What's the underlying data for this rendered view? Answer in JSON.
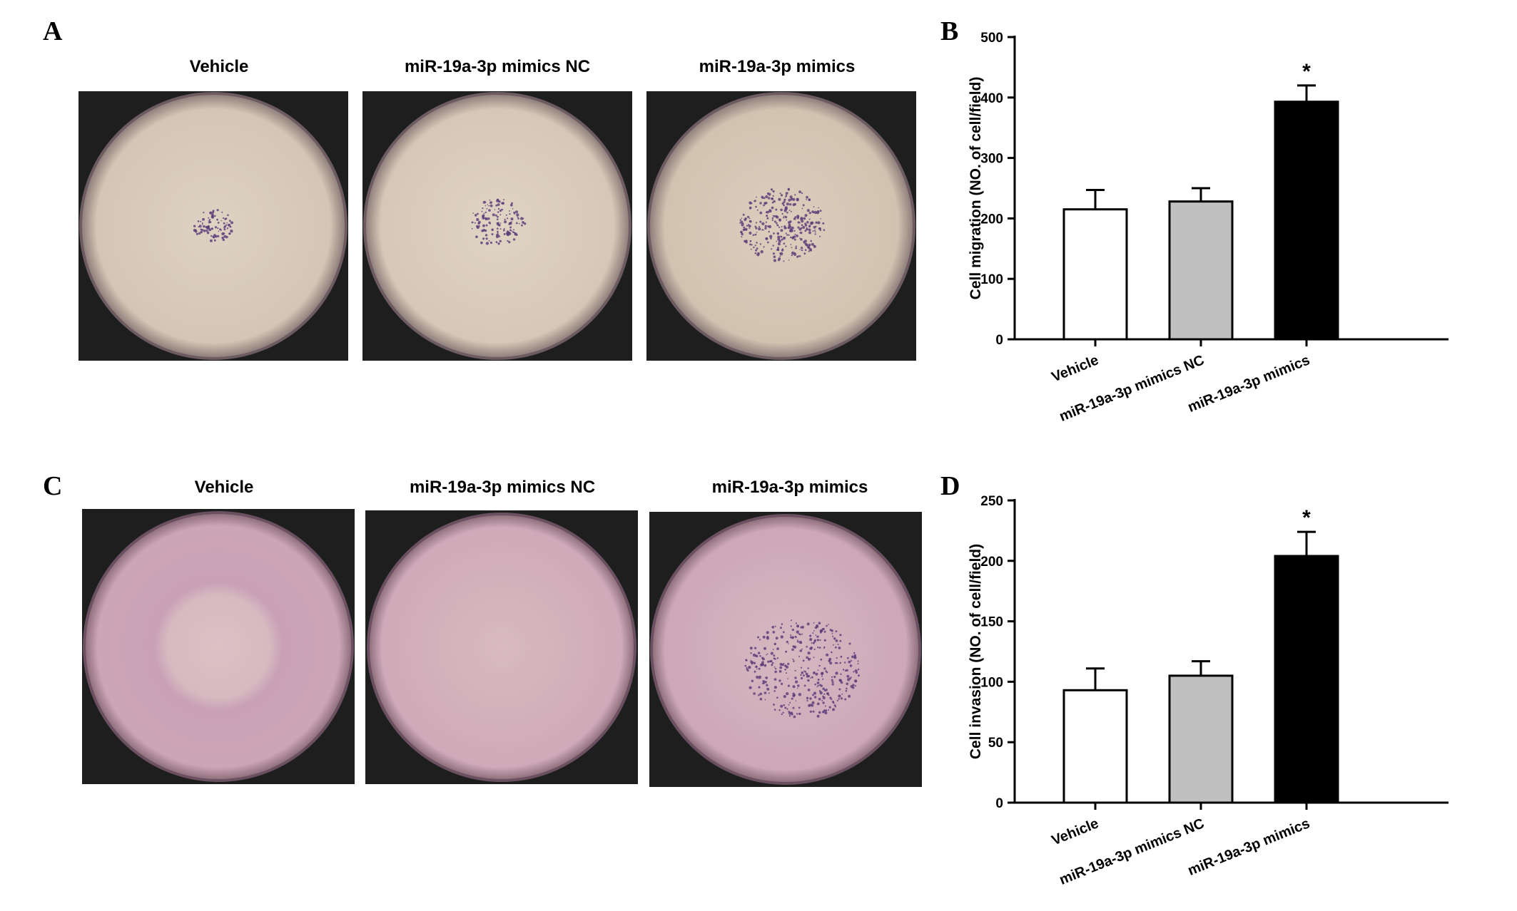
{
  "panels": {
    "a_letter": "A",
    "b_letter": "B",
    "c_letter": "C",
    "d_letter": "D"
  },
  "photos_a": {
    "labels": [
      "Vehicle",
      "miR-19a-3p mimics NC",
      "miR-19a-3p mimics"
    ],
    "stain_color": "#d8c8b8",
    "dot_color": "#5a3a78"
  },
  "photos_c": {
    "labels": [
      "Vehicle",
      "miR-19a-3p mimics NC",
      "miR-19a-3p mimics"
    ],
    "stain_color": "#d2aeba",
    "dot_color": "#5a3a78"
  },
  "chart_data": [
    {
      "type": "bar",
      "categories": [
        "Vehicle",
        "miR-19a-3p mimics NC",
        "miR-19a-3p mimics"
      ],
      "values": [
        215,
        228,
        393
      ],
      "errors": [
        32,
        22,
        27
      ],
      "colors": [
        "#ffffff",
        "#c0c0c0",
        "#000000"
      ],
      "significance": [
        "",
        "",
        "*"
      ],
      "ylabel": "Cell migration (NO. of cell/field)",
      "ylim": [
        0,
        500
      ],
      "yticks": [
        0,
        100,
        200,
        300,
        400,
        500
      ]
    },
    {
      "type": "bar",
      "categories": [
        "Vehicle",
        "miR-19a-3p mimics NC",
        "miR-19a-3p mimics"
      ],
      "values": [
        93,
        105,
        204
      ],
      "errors": [
        18,
        12,
        20
      ],
      "colors": [
        "#ffffff",
        "#c0c0c0",
        "#000000"
      ],
      "significance": [
        "",
        "",
        "*"
      ],
      "ylabel": "Cell invasion (NO. of cell/field)",
      "ylim": [
        0,
        250
      ],
      "yticks": [
        0,
        50,
        100,
        150,
        200,
        250
      ]
    }
  ]
}
